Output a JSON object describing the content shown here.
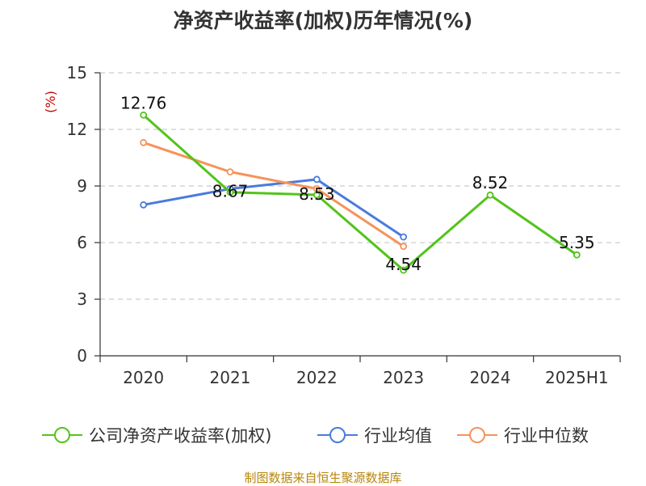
{
  "chart_data": {
    "type": "line",
    "title": "净资产收益率(加权)历年情况(%)",
    "ylabel": "(%)",
    "categories": [
      "2020",
      "2021",
      "2022",
      "2023",
      "2024",
      "2025H1"
    ],
    "yticks": [
      "0",
      "3",
      "6",
      "9",
      "12",
      "15"
    ],
    "ylim": [
      0,
      15
    ],
    "grid": "horizontal dashed",
    "legend_position": "bottom",
    "series": [
      {
        "name": "公司净资产收益率(加权)",
        "color": "#52c41a",
        "values": [
          12.76,
          8.67,
          8.53,
          4.54,
          8.52,
          5.35
        ],
        "labels": [
          "12.76",
          "8.67",
          "8.53",
          "4.54",
          "8.52",
          "5.35"
        ]
      },
      {
        "name": "行业均值",
        "color": "#4a7bdc",
        "values": [
          8.0,
          8.85,
          9.35,
          6.3,
          null,
          null
        ]
      },
      {
        "name": "行业中位数",
        "color": "#f5935a",
        "values": [
          11.3,
          9.75,
          8.85,
          5.8,
          null,
          null
        ]
      }
    ]
  },
  "footer": {
    "source": "制图数据来自恒生聚源数据库",
    "source_color": "#b8860b"
  },
  "colors": {
    "unit_label": "#cc0000",
    "axis": "#333333",
    "grid": "#cccccc"
  }
}
